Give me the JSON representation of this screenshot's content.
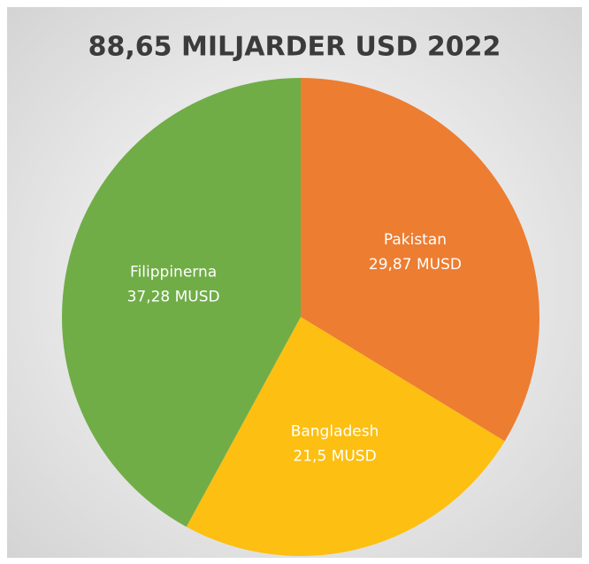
{
  "chart_data": {
    "type": "pie",
    "title": "88,65 MILJARDER USD 2022",
    "categories": [
      "Pakistan",
      "Bangladesh",
      "Filippinerna"
    ],
    "values": [
      29.87,
      21.5,
      37.28
    ],
    "value_labels": [
      "29,87 MUSD",
      "21,5 MUSD",
      "37,28 MUSD"
    ],
    "colors": [
      "#ed7d31",
      "#fcbf12",
      "#70ad47"
    ]
  }
}
